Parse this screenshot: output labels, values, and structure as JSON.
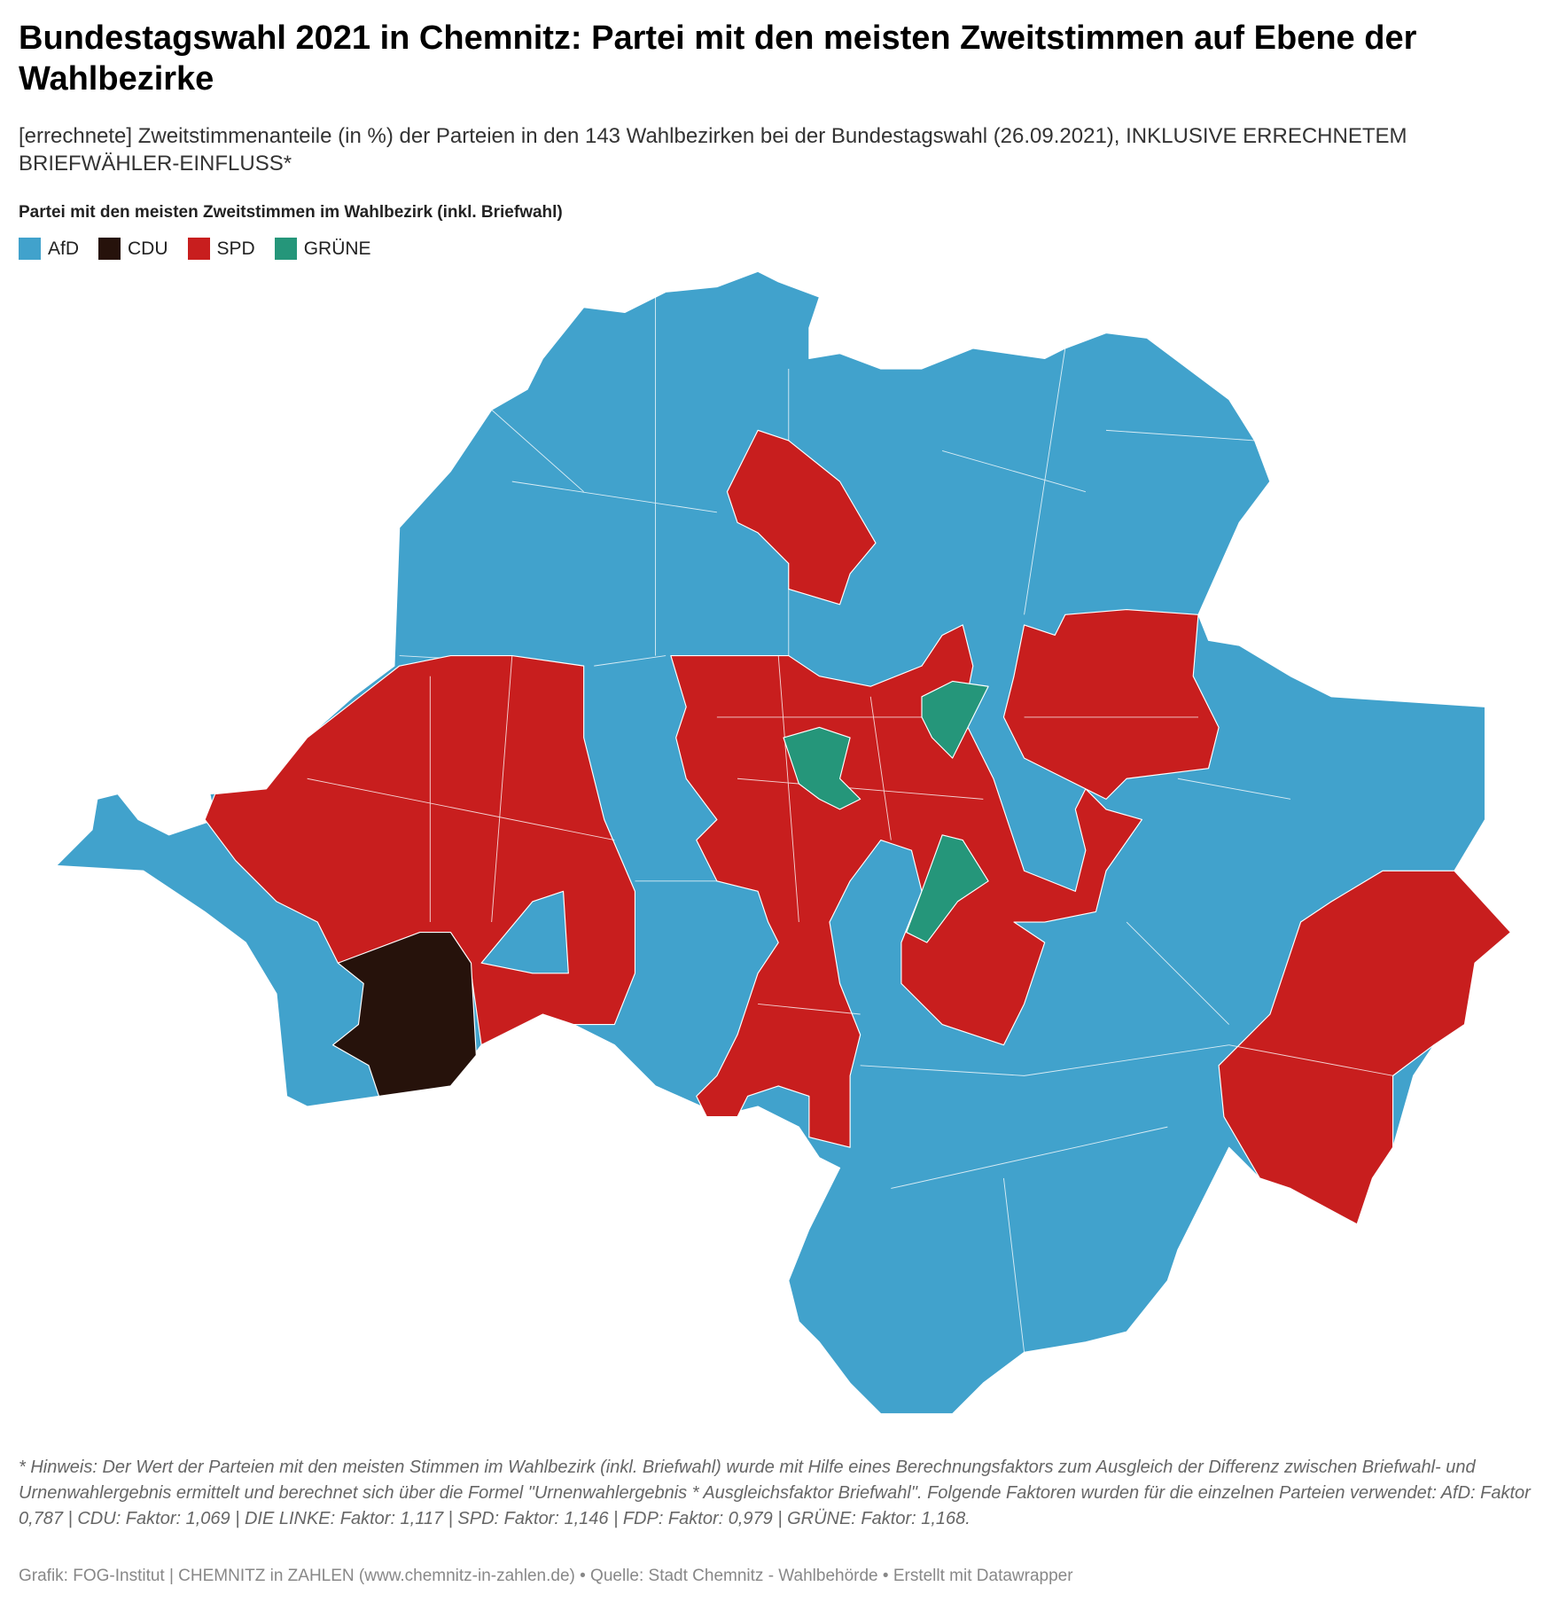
{
  "header": {
    "title": "Bundestagswahl 2021 in Chemnitz: Partei mit den meisten Zweitstimmen auf Ebene der Wahlbezirke",
    "subtitle": "[errechnete] Zweitstimmenanteile (in %) der Parteien in den 143 Wahlbezirken bei der Bundestagswahl (26.09.2021), INKLUSIVE ERRECHNETEM BRIEFWÄHLER-EINFLUSS*"
  },
  "legend": {
    "title": "Partei mit den meisten Zweitstimmen im Wahlbezirk (inkl. Briefwahl)",
    "items": [
      {
        "name": "AfD",
        "color": "#41a2cc"
      },
      {
        "name": "CDU",
        "color": "#26120b"
      },
      {
        "name": "SPD",
        "color": "#c81e1e"
      },
      {
        "name": "GRÜNE",
        "color": "#25967a"
      }
    ]
  },
  "footer": {
    "note": "* Hinweis: Der Wert der Parteien mit den meisten Stimmen im Wahlbezirk (inkl. Briefwahl) wurde mit Hilfe eines Berechnungsfaktors zum Ausgleich der Differenz zwischen Briefwahl- und Urnenwahlergebnis ermittelt und berechnet sich über die Formel \"Urnenwahlergebnis * Ausgleichsfaktor Briefwahl\". Folgende Faktoren wurden für die einzelnen Parteien verwendet: AfD: Faktor 0,787 | CDU: Faktor: 1,069 | DIE LINKE: Faktor: 1,117 | SPD: Faktor: 1,146 | FDP: Faktor: 0,979 | GRÜNE: Faktor: 1,168.",
    "credit": "Grafik: FOG-Institut | CHEMNITZ in ZAHLEN (www.chemnitz-in-zahlen.de) • Quelle: Stadt Chemnitz - Wahlbehörde • Erstellt mit Datawrapper"
  }
}
